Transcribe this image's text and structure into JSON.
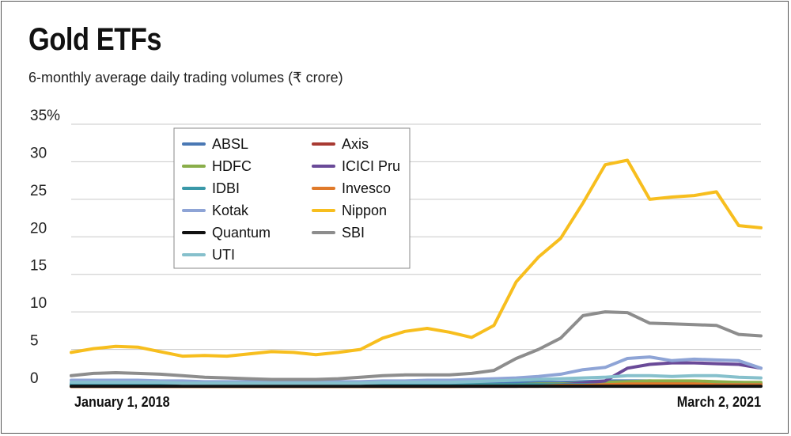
{
  "title": "Gold ETFs",
  "subtitle": "6-monthly average daily trading volumes (₹ crore)",
  "chart_data": {
    "type": "line",
    "y_ticks": [
      "35%",
      "30",
      "25",
      "20",
      "15",
      "10",
      "5",
      "0"
    ],
    "ylim": [
      0,
      35
    ],
    "x_start_label": "January 1, 2018",
    "x_end_label": "March 2, 2021",
    "legend_placement": "top-left",
    "grid": "horizontal",
    "series": [
      {
        "name": "ABSL",
        "color": "#4a78b4",
        "values": [
          0.4,
          0.4,
          0.4,
          0.4,
          0.3,
          0.3,
          0.3,
          0.3,
          0.3,
          0.3,
          0.3,
          0.3,
          0.3,
          0.3,
          0.4,
          0.4,
          0.4,
          0.4,
          0.4,
          0.5,
          0.5,
          0.6,
          0.6,
          0.7,
          0.8,
          0.8,
          0.8,
          0.7,
          0.7,
          0.6,
          0.6,
          0.5
        ]
      },
      {
        "name": "Axis",
        "color": "#a83a32",
        "values": [
          0.1,
          0.1,
          0.1,
          0.1,
          0.1,
          0.1,
          0.1,
          0.1,
          0.1,
          0.1,
          0.1,
          0.1,
          0.1,
          0.1,
          0.1,
          0.1,
          0.1,
          0.1,
          0.2,
          0.2,
          0.2,
          0.3,
          0.3,
          0.4,
          0.5,
          0.6,
          0.7,
          0.7,
          0.6,
          0.5,
          0.5,
          0.4
        ]
      },
      {
        "name": "HDFC",
        "color": "#8aae4a",
        "values": [
          0.2,
          0.2,
          0.2,
          0.2,
          0.2,
          0.2,
          0.2,
          0.2,
          0.2,
          0.2,
          0.2,
          0.2,
          0.2,
          0.2,
          0.2,
          0.2,
          0.2,
          0.2,
          0.3,
          0.3,
          0.3,
          0.4,
          0.4,
          0.5,
          0.6,
          0.7,
          0.8,
          0.8,
          0.8,
          0.7,
          0.6,
          0.6
        ]
      },
      {
        "name": "ICICI Pru",
        "color": "#6a4a98",
        "values": [
          0.1,
          0.1,
          0.1,
          0.1,
          0.1,
          0.1,
          0.1,
          0.1,
          0.1,
          0.1,
          0.1,
          0.1,
          0.1,
          0.1,
          0.1,
          0.1,
          0.1,
          0.1,
          0.1,
          0.1,
          0.1,
          0.2,
          0.3,
          0.5,
          0.8,
          2.5,
          3.0,
          3.2,
          3.2,
          3.1,
          3.0,
          2.5
        ]
      },
      {
        "name": "IDBI",
        "color": "#3a98a8",
        "values": [
          0.3,
          0.3,
          0.3,
          0.3,
          0.3,
          0.3,
          0.3,
          0.3,
          0.3,
          0.3,
          0.3,
          0.3,
          0.3,
          0.3,
          0.3,
          0.3,
          0.3,
          0.3,
          0.3,
          0.3,
          0.3,
          0.3,
          0.3,
          0.3,
          0.3,
          0.3,
          0.3,
          0.3,
          0.3,
          0.3,
          0.3,
          0.3
        ]
      },
      {
        "name": "Invesco",
        "color": "#e07a2a",
        "values": [
          0.05,
          0.05,
          0.05,
          0.05,
          0.05,
          0.05,
          0.05,
          0.05,
          0.05,
          0.05,
          0.05,
          0.05,
          0.05,
          0.05,
          0.05,
          0.05,
          0.05,
          0.05,
          0.1,
          0.1,
          0.1,
          0.1,
          0.2,
          0.2,
          0.3,
          0.4,
          0.4,
          0.4,
          0.4,
          0.3,
          0.3,
          0.3
        ]
      },
      {
        "name": "Kotak",
        "color": "#8ea4d6",
        "values": [
          0.9,
          0.9,
          0.9,
          0.9,
          0.8,
          0.8,
          0.7,
          0.7,
          0.7,
          0.7,
          0.7,
          0.7,
          0.7,
          0.7,
          0.8,
          0.8,
          0.9,
          0.9,
          1.0,
          1.1,
          1.2,
          1.4,
          1.7,
          2.3,
          2.6,
          3.8,
          4.0,
          3.5,
          3.7,
          3.6,
          3.5,
          2.5
        ]
      },
      {
        "name": "Nippon",
        "color": "#f7be1e",
        "values": [
          4.6,
          5.1,
          5.4,
          5.3,
          4.7,
          4.1,
          4.2,
          4.1,
          4.4,
          4.7,
          4.6,
          4.3,
          4.6,
          5.0,
          6.5,
          7.4,
          7.8,
          7.3,
          6.6,
          8.2,
          14.0,
          17.3,
          19.8,
          24.5,
          29.6,
          30.2,
          25.0,
          25.3,
          25.5,
          26.0,
          21.5,
          21.2
        ]
      },
      {
        "name": "Quantum",
        "color": "#111111",
        "values": [
          0.1,
          0.1,
          0.1,
          0.1,
          0.1,
          0.1,
          0.1,
          0.1,
          0.1,
          0.1,
          0.1,
          0.1,
          0.1,
          0.1,
          0.1,
          0.1,
          0.1,
          0.1,
          0.1,
          0.1,
          0.1,
          0.1,
          0.1,
          0.1,
          0.1,
          0.1,
          0.1,
          0.1,
          0.1,
          0.1,
          0.1,
          0.1
        ]
      },
      {
        "name": "SBI",
        "color": "#8d8d8d",
        "values": [
          1.5,
          1.8,
          1.9,
          1.8,
          1.7,
          1.5,
          1.3,
          1.2,
          1.1,
          1.0,
          1.0,
          1.0,
          1.1,
          1.3,
          1.5,
          1.6,
          1.6,
          1.6,
          1.8,
          2.2,
          3.8,
          5.0,
          6.5,
          9.5,
          10.0,
          9.9,
          8.5,
          8.4,
          8.3,
          8.2,
          7.0,
          6.8
        ]
      },
      {
        "name": "UTI",
        "color": "#86c0cc",
        "values": [
          0.6,
          0.6,
          0.6,
          0.6,
          0.6,
          0.5,
          0.5,
          0.5,
          0.5,
          0.5,
          0.5,
          0.5,
          0.5,
          0.5,
          0.6,
          0.6,
          0.6,
          0.6,
          0.7,
          0.8,
          0.9,
          1.0,
          1.1,
          1.2,
          1.3,
          1.5,
          1.5,
          1.4,
          1.5,
          1.5,
          1.3,
          1.2
        ]
      }
    ]
  },
  "colors": {
    "gridline": "#c8c8c8",
    "frame": "#555555"
  }
}
